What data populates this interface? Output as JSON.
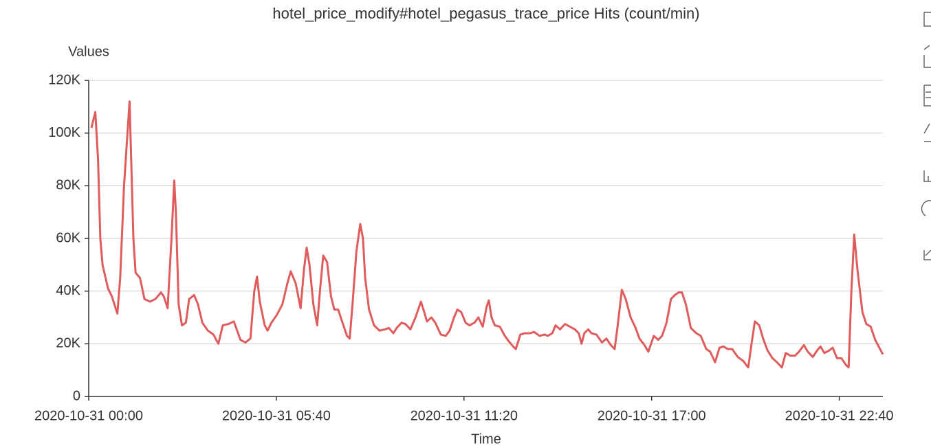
{
  "chart_data": {
    "type": "line",
    "title": "hotel_price_modify#hotel_pegasus_trace_price Hits (count/min)",
    "y_label": "Values",
    "x_label": "Time",
    "ylim": [
      0,
      120000
    ],
    "yticks": [
      {
        "value": 0,
        "label": "0"
      },
      {
        "value": 20000,
        "label": "20K"
      },
      {
        "value": 40000,
        "label": "40K"
      },
      {
        "value": 60000,
        "label": "60K"
      },
      {
        "value": 80000,
        "label": "80K"
      },
      {
        "value": 100000,
        "label": "100K"
      },
      {
        "value": 120000,
        "label": "120K"
      }
    ],
    "xlim": [
      "2020-10-31 00:00",
      "2020-10-31 23:59"
    ],
    "xticks": [
      "2020-10-31 00:00",
      "2020-10-31 05:40",
      "2020-10-31 11:20",
      "2020-10-31 17:00",
      "2020-10-31 22:40"
    ],
    "grid": true,
    "x": [
      "2020-10-31 00:05",
      "2020-10-31 00:12",
      "2020-10-31 00:17",
      "2020-10-31 00:21",
      "2020-10-31 00:25",
      "2020-10-31 00:35",
      "2020-10-31 00:42",
      "2020-10-31 00:52",
      "2020-10-31 00:57",
      "2020-10-31 01:04",
      "2020-10-31 01:14",
      "2020-10-31 01:17",
      "2020-10-31 01:21",
      "2020-10-31 01:25",
      "2020-10-31 01:33",
      "2020-10-31 01:41",
      "2020-10-31 01:51",
      "2020-10-31 02:01",
      "2020-10-31 02:11",
      "2020-10-31 02:16",
      "2020-10-31 02:23",
      "2020-10-31 02:30",
      "2020-10-31 02:35",
      "2020-10-31 02:38",
      "2020-10-31 02:43",
      "2020-10-31 02:49",
      "2020-10-31 02:56",
      "2020-10-31 03:02",
      "2020-10-31 03:11",
      "2020-10-31 03:18",
      "2020-10-31 03:26",
      "2020-10-31 03:36",
      "2020-10-31 03:46",
      "2020-10-31 03:55",
      "2020-10-31 04:03",
      "2020-10-31 04:13",
      "2020-10-31 04:23",
      "2020-10-31 04:29",
      "2020-10-31 04:35",
      "2020-10-31 04:44",
      "2020-10-31 04:53",
      "2020-10-31 05:00",
      "2020-10-31 05:05",
      "2020-10-31 05:10",
      "2020-10-31 05:19",
      "2020-10-31 05:24",
      "2020-10-31 05:31",
      "2020-10-31 05:41",
      "2020-10-31 05:51",
      "2020-10-31 06:00",
      "2020-10-31 06:06",
      "2020-10-31 06:15",
      "2020-10-31 06:24",
      "2020-10-31 06:30",
      "2020-10-31 06:35",
      "2020-10-31 06:40",
      "2020-10-31 06:47",
      "2020-10-31 06:54",
      "2020-10-31 06:59",
      "2020-10-31 07:05",
      "2020-10-31 07:12",
      "2020-10-31 07:19",
      "2020-10-31 07:25",
      "2020-10-31 07:32",
      "2020-10-31 07:40",
      "2020-10-31 07:48",
      "2020-10-31 07:53",
      "2020-10-31 07:58",
      "2020-10-31 08:05",
      "2020-10-31 08:12",
      "2020-10-31 08:17",
      "2020-10-31 08:21",
      "2020-10-31 08:28",
      "2020-10-31 08:37",
      "2020-10-31 08:47",
      "2020-10-31 08:57",
      "2020-10-31 09:04",
      "2020-10-31 09:12",
      "2020-10-31 09:18",
      "2020-10-31 09:27",
      "2020-10-31 09:34",
      "2020-10-31 09:43",
      "2020-10-31 09:52",
      "2020-10-31 10:02",
      "2020-10-31 10:08",
      "2020-10-31 10:13",
      "2020-10-31 10:21",
      "2020-10-31 10:28",
      "2020-10-31 10:38",
      "2020-10-31 10:47",
      "2020-10-31 10:54",
      "2020-10-31 11:02",
      "2020-10-31 11:08",
      "2020-10-31 11:15",
      "2020-10-31 11:23",
      "2020-10-31 11:30",
      "2020-10-31 11:39",
      "2020-10-31 11:46",
      "2020-10-31 11:54",
      "2020-10-31 12:01",
      "2020-10-31 12:05",
      "2020-10-31 12:10",
      "2020-10-31 12:16",
      "2020-10-31 12:25",
      "2020-10-31 12:34",
      "2020-10-31 12:41",
      "2020-10-31 12:49",
      "2020-10-31 12:54",
      "2020-10-31 13:02",
      "2020-10-31 13:10",
      "2020-10-31 13:20",
      "2020-10-31 13:27",
      "2020-10-31 13:37",
      "2020-10-31 13:46",
      "2020-10-31 13:52",
      "2020-10-31 14:00",
      "2020-10-31 14:06",
      "2020-10-31 14:14",
      "2020-10-31 14:23",
      "2020-10-31 14:32",
      "2020-10-31 14:41",
      "2020-10-31 14:48",
      "2020-10-31 14:53",
      "2020-10-31 14:58",
      "2020-10-31 15:05",
      "2020-10-31 15:11",
      "2020-10-31 15:20",
      "2020-10-31 15:30",
      "2020-10-31 15:38",
      "2020-10-31 15:46",
      "2020-10-31 15:53",
      "2020-10-31 15:58",
      "2020-10-31 16:06",
      "2020-10-31 16:13",
      "2020-10-31 16:22",
      "2020-10-31 16:31",
      "2020-10-31 16:38",
      "2020-10-31 16:47",
      "2020-10-31 16:54",
      "2020-10-31 16:59",
      "2020-10-31 17:04",
      "2020-10-31 17:12",
      "2020-10-31 17:19",
      "2020-10-31 17:27",
      "2020-10-31 17:35",
      "2020-10-31 17:42",
      "2020-10-31 17:49",
      "2020-10-31 17:55",
      "2020-10-31 18:02",
      "2020-10-31 18:11",
      "2020-10-31 18:21",
      "2020-10-31 18:29",
      "2020-10-31 18:39",
      "2020-10-31 18:46",
      "2020-10-31 18:55",
      "2020-10-31 19:03",
      "2020-10-31 19:10",
      "2020-10-31 19:18",
      "2020-10-31 19:26",
      "2020-10-31 19:36",
      "2020-10-31 19:46",
      "2020-10-31 19:55",
      "2020-10-31 20:01",
      "2020-10-31 20:07",
      "2020-10-31 20:15",
      "2020-10-31 20:22",
      "2020-10-31 20:30",
      "2020-10-31 20:39",
      "2020-10-31 20:47",
      "2020-10-31 20:56",
      "2020-10-31 21:03",
      "2020-10-31 21:11",
      "2020-10-31 21:20",
      "2020-10-31 21:27",
      "2020-10-31 21:36",
      "2020-10-31 21:43",
      "2020-10-31 21:52",
      "2020-10-31 22:00",
      "2020-10-31 22:06",
      "2020-10-31 22:13",
      "2020-10-31 22:22",
      "2020-10-31 22:28",
      "2020-10-31 22:36",
      "2020-10-31 22:44",
      "2020-10-31 22:52",
      "2020-10-31 22:57",
      "2020-10-31 23:02",
      "2020-10-31 23:07",
      "2020-10-31 23:13",
      "2020-10-31 23:22",
      "2020-10-31 23:29",
      "2020-10-31 23:37",
      "2020-10-31 23:45",
      "2020-10-31 23:59"
    ],
    "series": [
      {
        "name": "Hits",
        "color": "#e05c5c",
        "values": [
          102000,
          108000,
          90000,
          60000,
          50000,
          41000,
          38000,
          31500,
          45000,
          80000,
          112000,
          90000,
          60000,
          47000,
          45000,
          37000,
          36000,
          37000,
          39500,
          38000,
          33500,
          60000,
          82000,
          70000,
          35000,
          27000,
          28000,
          37000,
          38500,
          35000,
          28000,
          25000,
          23500,
          20000,
          27000,
          27500,
          28500,
          25000,
          21500,
          20500,
          22000,
          40000,
          45500,
          36000,
          27000,
          25000,
          28000,
          31000,
          35000,
          43000,
          47500,
          43000,
          33500,
          48000,
          56500,
          50000,
          35000,
          27000,
          40000,
          53500,
          51000,
          38000,
          33000,
          33000,
          28000,
          23000,
          22000,
          35000,
          55000,
          65500,
          60000,
          45000,
          33000,
          27000,
          25000,
          25500,
          26000,
          24000,
          26000,
          28000,
          27500,
          25500,
          30000,
          36000,
          32000,
          28500,
          30000,
          28000,
          23500,
          23000,
          25000,
          30000,
          33000,
          32000,
          28000,
          27000,
          28000,
          30000,
          26500,
          34000,
          36500,
          30000,
          27000,
          26500,
          23000,
          21000,
          19000,
          18000,
          23500,
          24000,
          24000,
          24500,
          23000,
          23500,
          23000,
          24000,
          27000,
          25500,
          27500,
          26500,
          25500,
          24000,
          20000,
          24000,
          25500,
          24000,
          23500,
          20500,
          22000,
          19500,
          18000,
          26000,
          40500,
          37000,
          30000,
          26000,
          22000,
          19500,
          17000,
          20000,
          23000,
          21500,
          23000,
          28000,
          37000,
          38500,
          39500,
          39500,
          35000,
          26000,
          24000,
          23000,
          18000,
          17000,
          13000,
          18500,
          19000,
          18000,
          18000,
          15000,
          13500,
          11000,
          20000,
          28500,
          27000,
          22000,
          17500,
          14500,
          13000,
          11000,
          16500,
          15500,
          15500,
          17000,
          19500,
          17000,
          15000,
          17500,
          19000,
          16500,
          17500,
          18500,
          14500,
          14500,
          12000,
          11000,
          40000,
          61500,
          48000,
          32000,
          27500,
          26500,
          21500,
          16000
        ]
      }
    ]
  }
}
